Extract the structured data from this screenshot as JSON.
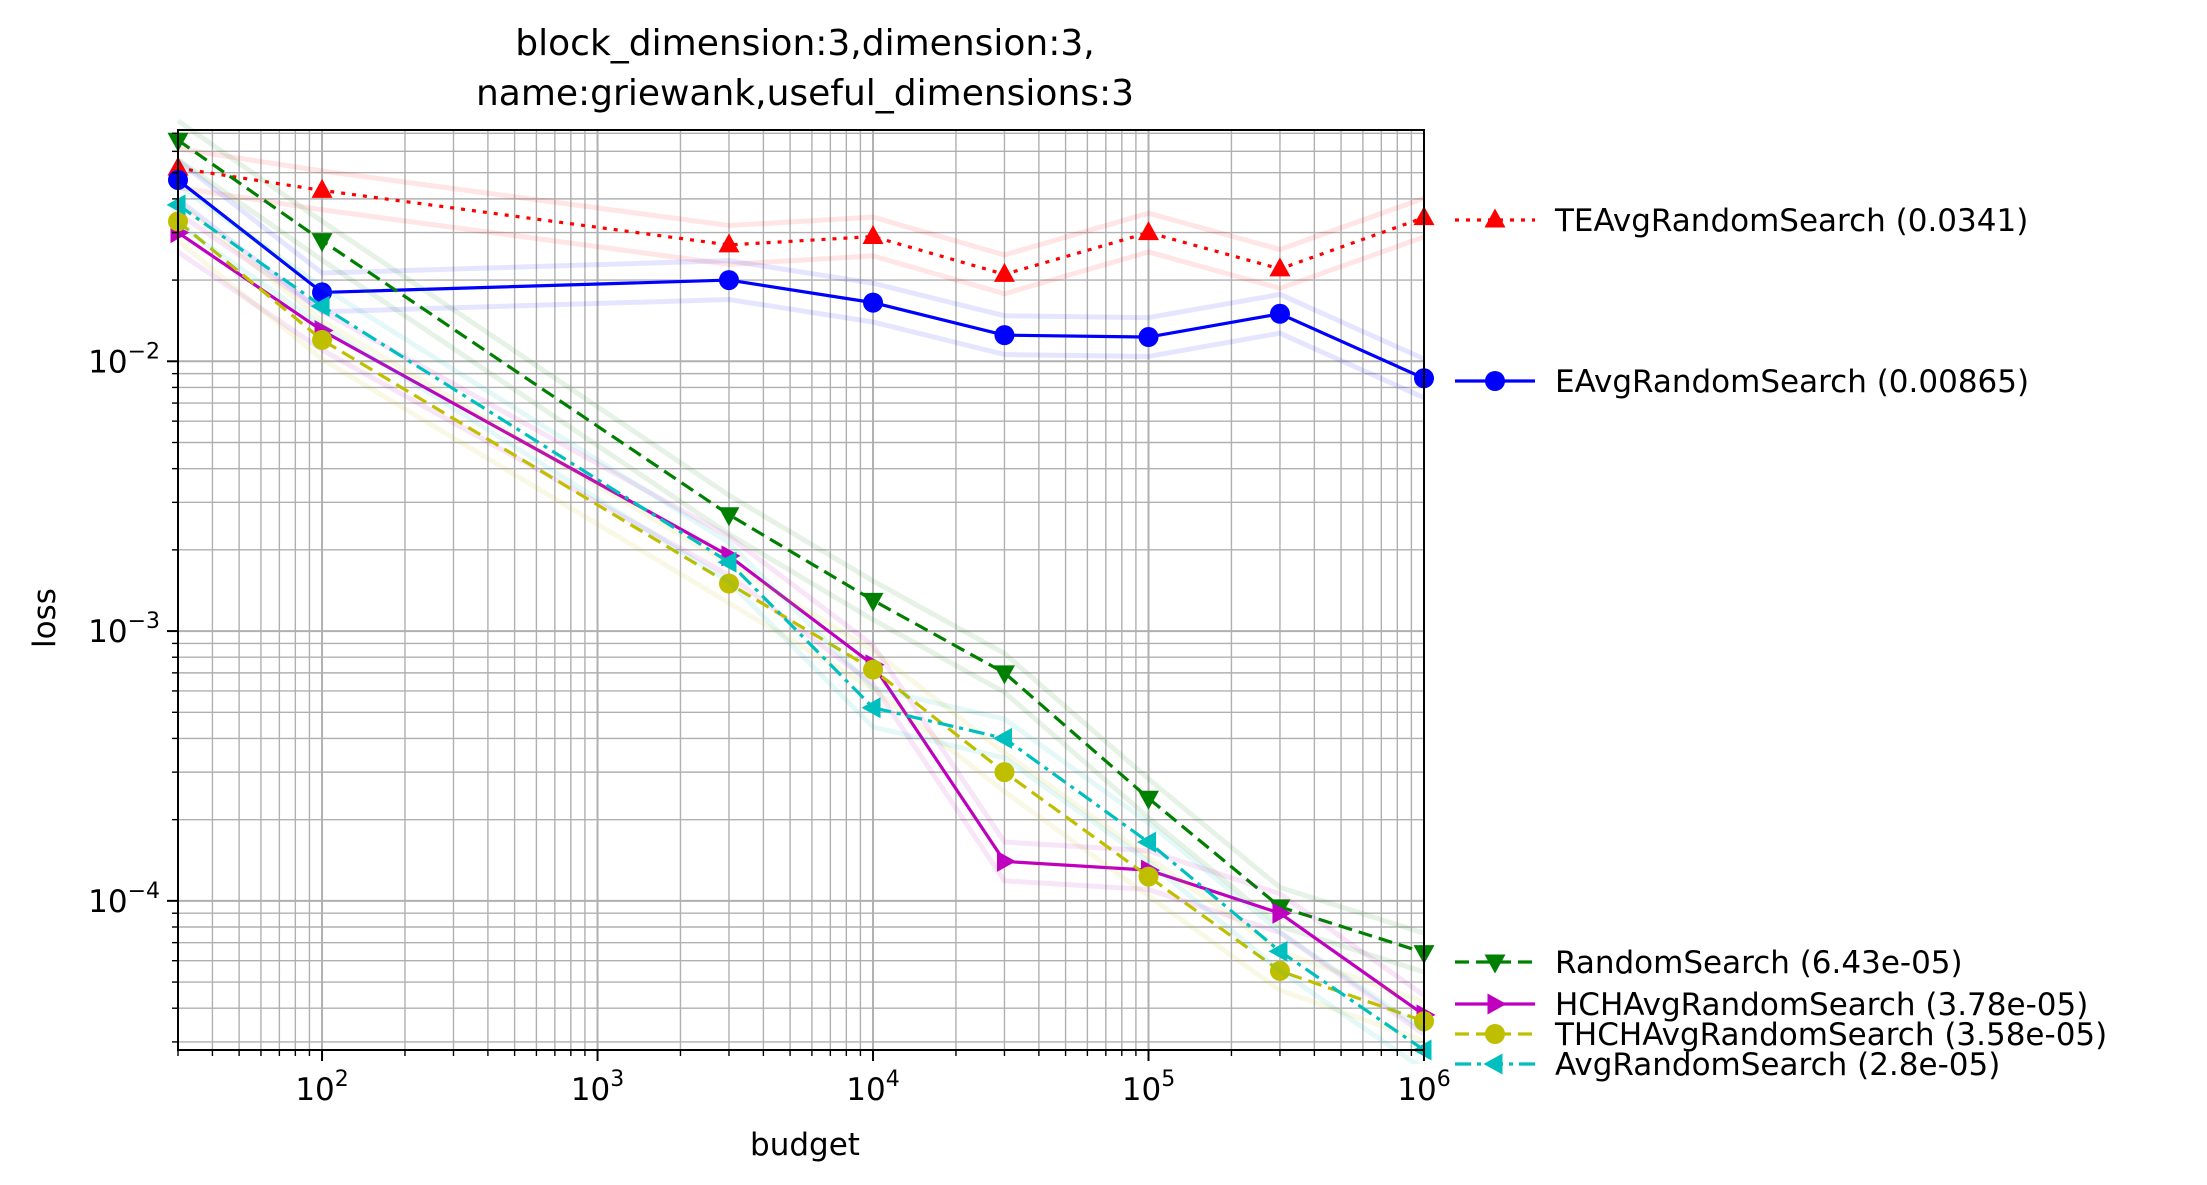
{
  "chart_data": {
    "type": "line",
    "title_lines": [
      "block_dimension:3,dimension:3,",
      "name:griewank,useful_dimensions:3"
    ],
    "xlabel": "budget",
    "ylabel": "loss",
    "x_scale": "log",
    "y_scale": "log",
    "xlim": [
      30,
      1000000
    ],
    "ylim": [
      2.8e-05,
      0.072
    ],
    "x_ticks": [
      {
        "value": 100,
        "base": "10",
        "exp": "2"
      },
      {
        "value": 1000,
        "base": "10",
        "exp": "3"
      },
      {
        "value": 10000,
        "base": "10",
        "exp": "4"
      },
      {
        "value": 100000,
        "base": "10",
        "exp": "5"
      },
      {
        "value": 1000000,
        "base": "10",
        "exp": "6"
      }
    ],
    "y_ticks": [
      {
        "value": 0.0001,
        "base": "10",
        "exp": "−4"
      },
      {
        "value": 0.001,
        "base": "10",
        "exp": "−3"
      },
      {
        "value": 0.01,
        "base": "10",
        "exp": "−2"
      }
    ],
    "grid": true,
    "legend_placement": "outside-right",
    "series": [
      {
        "name": "TEAvgRandomSearch (0.0341)",
        "color": "#ff0000",
        "dash": "dotted",
        "marker": "triangle-up",
        "x": [
          30,
          100,
          3000,
          10000,
          30000,
          100000,
          300000,
          1000000
        ],
        "y": [
          0.052,
          0.043,
          0.027,
          0.029,
          0.021,
          0.03,
          0.022,
          0.0341
        ]
      },
      {
        "name": "EAvgRandomSearch (0.00865)",
        "color": "#0000ff",
        "dash": "solid",
        "marker": "circle",
        "x": [
          30,
          100,
          3000,
          10000,
          30000,
          100000,
          300000,
          1000000
        ],
        "y": [
          0.047,
          0.018,
          0.02,
          0.0165,
          0.0125,
          0.0123,
          0.015,
          0.00865
        ]
      },
      {
        "name": "RandomSearch (6.43e-05)",
        "color": "#008000",
        "dash": "dashed",
        "marker": "triangle-down",
        "x": [
          30,
          100,
          3000,
          10000,
          30000,
          100000,
          300000,
          1000000
        ],
        "y": [
          0.066,
          0.028,
          0.0027,
          0.0013,
          0.0007,
          0.00024,
          9.5e-05,
          6.43e-05
        ]
      },
      {
        "name": "HCHAvgRandomSearch (3.78e-05)",
        "color": "#bf00bf",
        "dash": "solid",
        "marker": "triangle-right",
        "x": [
          30,
          100,
          3000,
          10000,
          30000,
          100000,
          300000,
          1000000
        ],
        "y": [
          0.03,
          0.013,
          0.0019,
          0.00075,
          0.00014,
          0.00013,
          9e-05,
          3.78e-05
        ]
      },
      {
        "name": "THCHAvgRandomSearch (3.58e-05)",
        "color": "#bfbf00",
        "dash": "dashed",
        "marker": "circle",
        "x": [
          30,
          100,
          3000,
          10000,
          30000,
          100000,
          300000,
          1000000
        ],
        "y": [
          0.033,
          0.012,
          0.0015,
          0.00072,
          0.0003,
          0.000123,
          5.5e-05,
          3.58e-05
        ]
      },
      {
        "name": "AvgRandomSearch (2.8e-05)",
        "color": "#00bfbf",
        "dash": "dashdot",
        "marker": "triangle-left",
        "x": [
          30,
          100,
          3000,
          10000,
          30000,
          100000,
          300000,
          1000000
        ],
        "y": [
          0.038,
          0.016,
          0.0018,
          0.00052,
          0.0004,
          0.000165,
          6.5e-05,
          2.8e-05
        ]
      }
    ]
  }
}
